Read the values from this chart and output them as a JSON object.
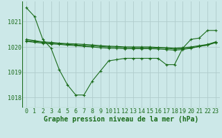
{
  "background_color": "#cce8e8",
  "plot_bg_color": "#cce8e8",
  "grid_color": "#b0cccc",
  "line_color": "#1a6b1a",
  "xlabel": "Graphe pression niveau de la mer (hPa)",
  "xlabel_fontsize": 7,
  "tick_fontsize": 6,
  "ylim": [
    1017.6,
    1021.8
  ],
  "xlim": [
    -0.5,
    23.5
  ],
  "yticks": [
    1018,
    1019,
    1020,
    1021
  ],
  "xticks": [
    0,
    1,
    2,
    3,
    4,
    5,
    6,
    7,
    8,
    9,
    10,
    11,
    12,
    13,
    14,
    15,
    16,
    17,
    18,
    19,
    20,
    21,
    22,
    23
  ],
  "series": [
    {
      "x": [
        0,
        1,
        2,
        3,
        4,
        5,
        6,
        7,
        8,
        9,
        10,
        11,
        12,
        13,
        14,
        15,
        16,
        17,
        18,
        19,
        20,
        21,
        22,
        23
      ],
      "y": [
        1021.55,
        1021.2,
        1020.3,
        1019.95,
        1019.1,
        1018.5,
        1018.1,
        1018.1,
        1018.65,
        1019.05,
        1019.45,
        1019.5,
        1019.55,
        1019.55,
        1019.55,
        1019.55,
        1019.55,
        1019.3,
        1019.3,
        1019.95,
        1020.3,
        1020.35,
        1020.65,
        1020.65
      ]
    },
    {
      "x": [
        0,
        1,
        2,
        3,
        4,
        5,
        6,
        7,
        8,
        9,
        10,
        11,
        12,
        13,
        14,
        15,
        16,
        17,
        18,
        19,
        20,
        21,
        22,
        23
      ],
      "y": [
        1020.3,
        1020.25,
        1020.2,
        1020.18,
        1020.15,
        1020.13,
        1020.12,
        1020.1,
        1020.08,
        1020.05,
        1020.03,
        1020.02,
        1020.0,
        1020.0,
        1020.0,
        1020.0,
        1019.98,
        1019.97,
        1019.95,
        1019.97,
        1020.0,
        1020.05,
        1020.1,
        1020.2
      ]
    },
    {
      "x": [
        0,
        1,
        2,
        3,
        4,
        5,
        6,
        7,
        8,
        9,
        10,
        11,
        12,
        13,
        14,
        15,
        16,
        17,
        18,
        19,
        20,
        21,
        22,
        23
      ],
      "y": [
        1020.25,
        1020.22,
        1020.18,
        1020.15,
        1020.13,
        1020.1,
        1020.08,
        1020.06,
        1020.04,
        1020.02,
        1020.0,
        1019.99,
        1019.98,
        1019.97,
        1019.97,
        1019.97,
        1019.96,
        1019.95,
        1019.92,
        1019.93,
        1019.96,
        1020.02,
        1020.08,
        1020.18
      ]
    },
    {
      "x": [
        0,
        1,
        2,
        3,
        4,
        5,
        6,
        7,
        8,
        9,
        10,
        11,
        12,
        13,
        14,
        15,
        16,
        17,
        18,
        19,
        20,
        21,
        22,
        23
      ],
      "y": [
        1020.22,
        1020.18,
        1020.15,
        1020.12,
        1020.1,
        1020.07,
        1020.05,
        1020.02,
        1020.0,
        1019.97,
        1019.95,
        1019.94,
        1019.93,
        1019.93,
        1019.93,
        1019.93,
        1019.92,
        1019.9,
        1019.87,
        1019.9,
        1019.95,
        1020.02,
        1020.07,
        1020.17
      ]
    }
  ]
}
